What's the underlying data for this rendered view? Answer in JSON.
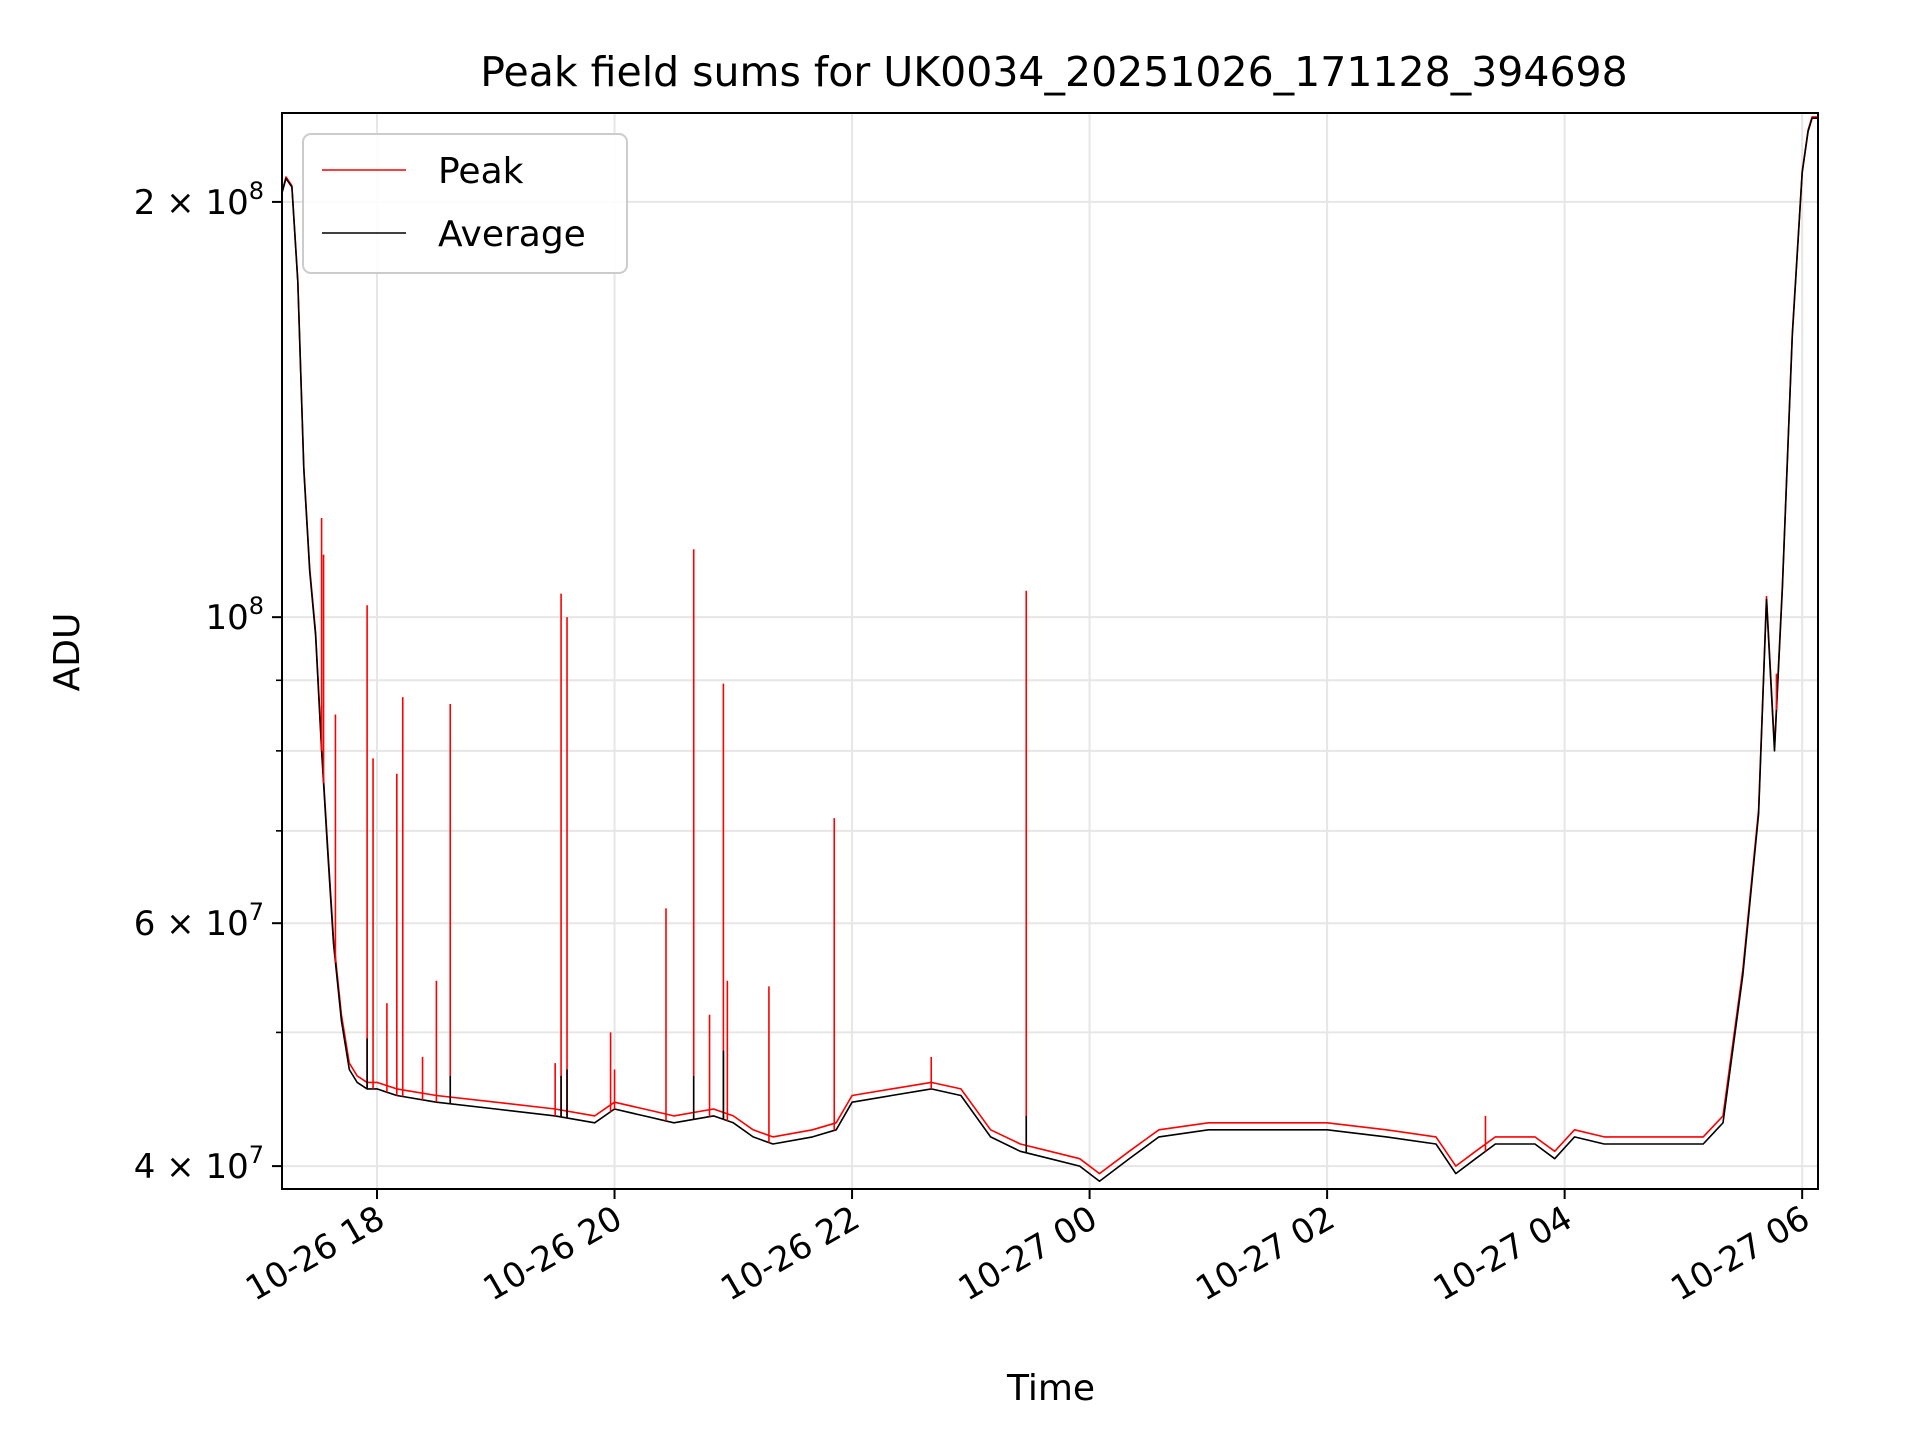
{
  "chart_data": {
    "type": "line",
    "title": "Peak field sums for UK0034_20251026_171128_394698",
    "xlabel": "Time",
    "ylabel": "ADU",
    "yscale": "log",
    "ylim": [
      38500000,
      232000000
    ],
    "xlim": [
      "2025-10-26 17:12",
      "2025-10-27 06:08"
    ],
    "grid": true,
    "legend_position": "upper-left",
    "x_tick_labels": [
      "10-26 18",
      "10-26 20",
      "10-26 22",
      "10-27 00",
      "10-27 02",
      "10-27 04",
      "10-27 06"
    ],
    "x_ticks": [
      "2025-10-26 18:00",
      "2025-10-26 20:00",
      "2025-10-26 22:00",
      "2025-10-27 00:00",
      "2025-10-27 02:00",
      "2025-10-27 04:00",
      "2025-10-27 06:00"
    ],
    "y_major_ticks": [
      {
        "value": 40000000,
        "mantissa": "4",
        "exponent": "7"
      },
      {
        "value": 60000000,
        "mantissa": "6",
        "exponent": "7"
      },
      {
        "value": 100000000,
        "mantissa": "",
        "exponent": "8"
      },
      {
        "value": 200000000,
        "mantissa": "2",
        "exponent": "8"
      }
    ],
    "y_minor_ticks": [
      50000000,
      70000000,
      80000000,
      90000000
    ],
    "series": [
      {
        "name": "Average",
        "color": "#000000",
        "x": [
          "2025-10-26 17:12",
          "2025-10-26 17:14",
          "2025-10-26 17:17",
          "2025-10-26 17:20",
          "2025-10-26 17:23",
          "2025-10-26 17:26",
          "2025-10-26 17:29",
          "2025-10-26 17:32",
          "2025-10-26 17:35",
          "2025-10-26 17:38",
          "2025-10-26 17:42",
          "2025-10-26 17:46",
          "2025-10-26 17:50",
          "2025-10-26 17:55",
          "2025-10-26 18:00",
          "2025-10-26 18:10",
          "2025-10-26 18:30",
          "2025-10-26 19:00",
          "2025-10-26 19:30",
          "2025-10-26 19:50",
          "2025-10-26 20:00",
          "2025-10-26 20:15",
          "2025-10-26 20:30",
          "2025-10-26 20:50",
          "2025-10-26 21:00",
          "2025-10-26 21:10",
          "2025-10-26 21:20",
          "2025-10-26 21:40",
          "2025-10-26 21:52",
          "2025-10-26 22:00",
          "2025-10-26 22:20",
          "2025-10-26 22:40",
          "2025-10-26 22:55",
          "2025-10-26 23:10",
          "2025-10-26 23:25",
          "2025-10-26 23:40",
          "2025-10-26 23:55",
          "2025-10-27 00:05",
          "2025-10-27 00:20",
          "2025-10-27 00:35",
          "2025-10-27 01:00",
          "2025-10-27 01:30",
          "2025-10-27 02:00",
          "2025-10-27 02:30",
          "2025-10-27 02:55",
          "2025-10-27 03:05",
          "2025-10-27 03:15",
          "2025-10-27 03:25",
          "2025-10-27 03:45",
          "2025-10-27 03:55",
          "2025-10-27 04:05",
          "2025-10-27 04:20",
          "2025-10-27 04:40",
          "2025-10-27 05:00",
          "2025-10-27 05:10",
          "2025-10-27 05:20",
          "2025-10-27 05:30",
          "2025-10-27 05:38",
          "2025-10-27 05:42",
          "2025-10-27 05:46",
          "2025-10-27 05:50",
          "2025-10-27 05:55",
          "2025-10-27 06:00",
          "2025-10-27 06:03",
          "2025-10-27 06:05",
          "2025-10-27 06:08"
        ],
        "y": [
          203000000,
          208000000,
          205000000,
          175000000,
          128000000,
          108000000,
          97000000,
          80000000,
          68000000,
          58000000,
          51000000,
          47000000,
          46000000,
          45500000,
          45500000,
          45000000,
          44500000,
          44000000,
          43500000,
          43000000,
          44000000,
          43500000,
          43000000,
          43500000,
          43000000,
          42000000,
          41500000,
          42000000,
          42500000,
          44500000,
          45000000,
          45500000,
          45000000,
          42000000,
          41000000,
          40500000,
          40000000,
          39000000,
          40500000,
          42000000,
          42500000,
          42500000,
          42500000,
          42000000,
          41500000,
          39500000,
          40500000,
          41500000,
          41500000,
          40500000,
          42000000,
          41500000,
          41500000,
          41500000,
          41500000,
          43000000,
          55000000,
          72000000,
          103000000,
          80000000,
          105000000,
          160000000,
          210000000,
          225000000,
          230000000,
          230000000
        ]
      },
      {
        "name": "Peak",
        "color": "#ff0000",
        "x": [
          "2025-10-26 17:12",
          "2025-10-26 17:14",
          "2025-10-26 17:17",
          "2025-10-26 17:20",
          "2025-10-26 17:23",
          "2025-10-26 17:26",
          "2025-10-26 17:29",
          "2025-10-26 17:32",
          "2025-10-26 17:35",
          "2025-10-26 17:38",
          "2025-10-26 17:42",
          "2025-10-26 17:46",
          "2025-10-26 17:50",
          "2025-10-26 17:55",
          "2025-10-26 18:00",
          "2025-10-26 18:10",
          "2025-10-26 18:30",
          "2025-10-26 19:00",
          "2025-10-26 19:30",
          "2025-10-26 19:50",
          "2025-10-26 20:00",
          "2025-10-26 20:15",
          "2025-10-26 20:30",
          "2025-10-26 20:50",
          "2025-10-26 21:00",
          "2025-10-26 21:10",
          "2025-10-26 21:20",
          "2025-10-26 21:40",
          "2025-10-26 21:52",
          "2025-10-26 22:00",
          "2025-10-26 22:20",
          "2025-10-26 22:40",
          "2025-10-26 22:55",
          "2025-10-26 23:10",
          "2025-10-26 23:25",
          "2025-10-26 23:40",
          "2025-10-26 23:55",
          "2025-10-27 00:05",
          "2025-10-27 00:20",
          "2025-10-27 00:35",
          "2025-10-27 01:00",
          "2025-10-27 01:30",
          "2025-10-27 02:00",
          "2025-10-27 02:30",
          "2025-10-27 02:55",
          "2025-10-27 03:05",
          "2025-10-27 03:15",
          "2025-10-27 03:25",
          "2025-10-27 03:45",
          "2025-10-27 03:55",
          "2025-10-27 04:05",
          "2025-10-27 04:20",
          "2025-10-27 04:40",
          "2025-10-27 05:00",
          "2025-10-27 05:10",
          "2025-10-27 05:20",
          "2025-10-27 05:30",
          "2025-10-27 05:38",
          "2025-10-27 05:42",
          "2025-10-27 05:46",
          "2025-10-27 05:50",
          "2025-10-27 05:55",
          "2025-10-27 06:00",
          "2025-10-27 06:03",
          "2025-10-27 06:05",
          "2025-10-27 06:08"
        ],
        "y": [
          203500000,
          208500000,
          205500000,
          175500000,
          128500000,
          108500000,
          97500000,
          80500000,
          68500000,
          58500000,
          51500000,
          47500000,
          46500000,
          46000000,
          46000000,
          45500000,
          45000000,
          44500000,
          44000000,
          43500000,
          44500000,
          44000000,
          43500000,
          44000000,
          43500000,
          42500000,
          42000000,
          42500000,
          43000000,
          45000000,
          45500000,
          46000000,
          45500000,
          42500000,
          41500000,
          41000000,
          40500000,
          39500000,
          41000000,
          42500000,
          43000000,
          43000000,
          43000000,
          42500000,
          42000000,
          40000000,
          41000000,
          42000000,
          42000000,
          41000000,
          42500000,
          42000000,
          42000000,
          42000000,
          42000000,
          43500000,
          55500000,
          72500000,
          103500000,
          80500000,
          105500000,
          160500000,
          210500000,
          225500000,
          230500000,
          230500000
        ]
      }
    ],
    "peak_spikes": [
      {
        "x": "2025-10-26 17:32",
        "y": 118000000
      },
      {
        "x": "2025-10-26 17:33",
        "y": 111000000
      },
      {
        "x": "2025-10-26 17:39",
        "y": 85000000
      },
      {
        "x": "2025-10-26 17:55",
        "y": 102000000
      },
      {
        "x": "2025-10-26 17:58",
        "y": 79000000
      },
      {
        "x": "2025-10-26 18:05",
        "y": 52500000
      },
      {
        "x": "2025-10-26 18:10",
        "y": 77000000
      },
      {
        "x": "2025-10-26 18:13",
        "y": 87500000
      },
      {
        "x": "2025-10-26 18:23",
        "y": 48000000
      },
      {
        "x": "2025-10-26 18:30",
        "y": 54500000
      },
      {
        "x": "2025-10-26 18:37",
        "y": 86500000
      },
      {
        "x": "2025-10-26 19:30",
        "y": 47500000
      },
      {
        "x": "2025-10-26 19:33",
        "y": 104000000
      },
      {
        "x": "2025-10-26 19:36",
        "y": 100000000
      },
      {
        "x": "2025-10-26 19:58",
        "y": 50000000
      },
      {
        "x": "2025-10-26 20:00",
        "y": 47000000
      },
      {
        "x": "2025-10-26 20:26",
        "y": 61500000
      },
      {
        "x": "2025-10-26 20:40",
        "y": 112000000
      },
      {
        "x": "2025-10-26 20:48",
        "y": 51500000
      },
      {
        "x": "2025-10-26 20:55",
        "y": 89500000
      },
      {
        "x": "2025-10-26 20:57",
        "y": 54500000
      },
      {
        "x": "2025-10-26 21:18",
        "y": 54000000
      },
      {
        "x": "2025-10-26 21:51",
        "y": 71500000
      },
      {
        "x": "2025-10-26 22:40",
        "y": 48000000
      },
      {
        "x": "2025-10-26 23:28",
        "y": 104500000
      },
      {
        "x": "2025-10-27 03:20",
        "y": 43500000
      },
      {
        "x": "2025-10-27 05:47",
        "y": 91000000
      }
    ],
    "avg_spikes": [
      {
        "x": "2025-10-26 17:55",
        "y": 49500000
      },
      {
        "x": "2025-10-26 18:37",
        "y": 46500000
      },
      {
        "x": "2025-10-26 19:33",
        "y": 46500000
      },
      {
        "x": "2025-10-26 19:36",
        "y": 47000000
      },
      {
        "x": "2025-10-26 20:40",
        "y": 46500000
      },
      {
        "x": "2025-10-26 20:55",
        "y": 48500000
      },
      {
        "x": "2025-10-26 23:28",
        "y": 43500000
      }
    ]
  }
}
